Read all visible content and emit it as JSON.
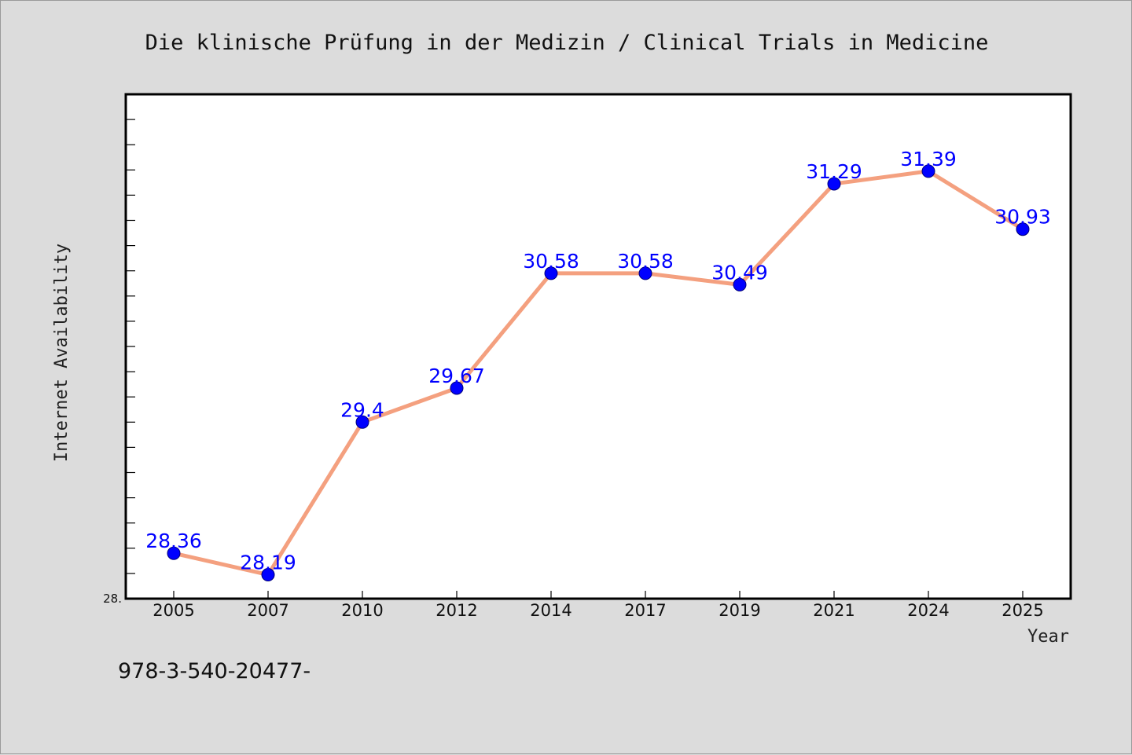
{
  "chart_data": {
    "type": "line",
    "title": "Die klinische Prüfung in der Medizin / Clinical Trials in Medicine",
    "xlabel": "Year",
    "ylabel": "Internet Availability",
    "categories": [
      "2005",
      "2007",
      "2010",
      "2012",
      "2014",
      "2017",
      "2019",
      "2021",
      "2024",
      "2025"
    ],
    "series": [
      {
        "values": [
          28.36,
          28.19,
          29.4,
          29.67,
          30.58,
          30.58,
          30.49,
          31.29,
          31.39,
          30.93
        ],
        "labels": [
          "28.36",
          "28.19",
          "29.4",
          "29.67",
          "30.58",
          "30.58",
          "30.49",
          "31.29",
          "31.39",
          "30.93"
        ],
        "line_color": "#f4a07f",
        "marker_color": "#0000ff"
      }
    ],
    "ylim": [
      28.0,
      32.0
    ],
    "y_tick_labels": [
      "28."
    ],
    "y_minor_ticks": 20,
    "grid": false,
    "legend": "none"
  },
  "footnote": "978-3-540-20477-",
  "colors": {
    "background": "#dcdcdc",
    "plot_background": "#ffffff",
    "frame": "#000000"
  }
}
